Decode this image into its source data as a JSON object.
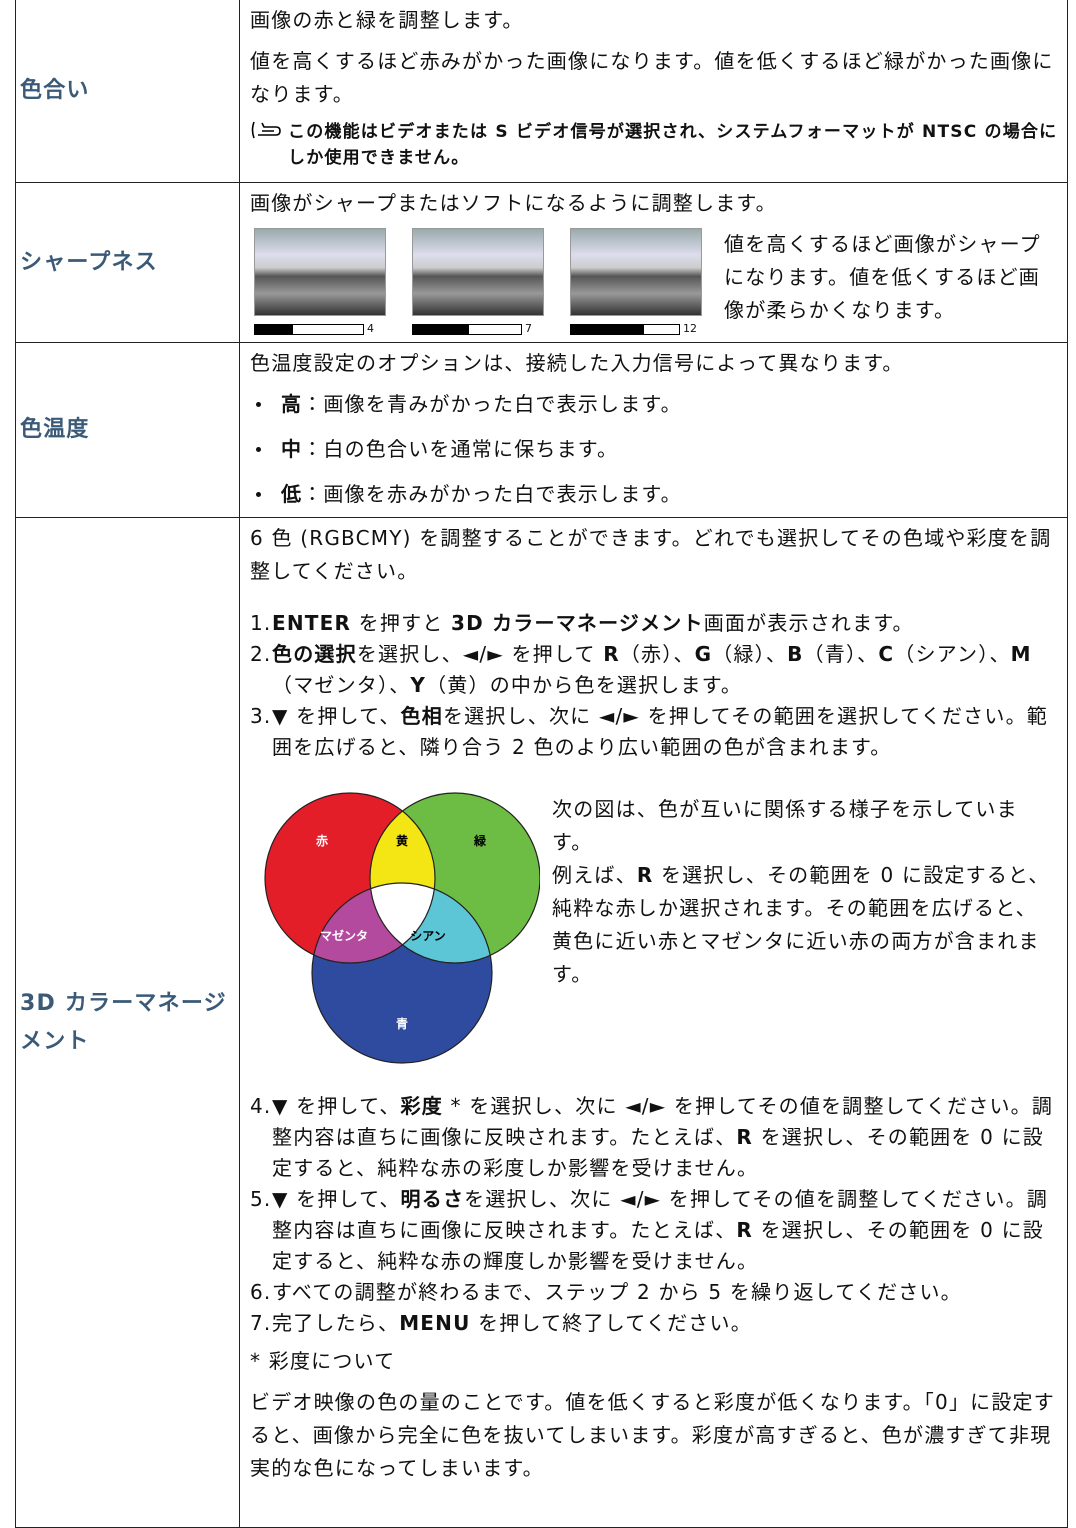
{
  "rows": [
    {
      "label": "色合い",
      "paragraphs": [
        "画像の赤と緑を調整します。",
        "値を高くするほど赤みがかった画像になります。値を低くするほど緑がかった画像になります。"
      ],
      "note": "この機能はビデオまたは S ビデオ信号が選択され、システムフォーマットが NTSC の場合にしか使用できません。"
    },
    {
      "label": "シャープネス",
      "paragraphs": [
        "画像がシャープまたはソフトになるように調整します。"
      ],
      "sliders": [
        "4",
        "7",
        "12"
      ],
      "side_text": "値を高くするほど画像がシャープになります。値を低くするほど画像が柔らかくなります。"
    },
    {
      "label": "色温度",
      "paragraphs": [
        "色温度設定のオプションは、接続した入力信号によって異なります。"
      ],
      "bullets": [
        {
          "term": "高",
          "text": "：画像を青みがかった白で表示します。"
        },
        {
          "term": "中",
          "text": "：白の色合いを通常に保ちます。"
        },
        {
          "term": "低",
          "text": "：画像を赤みがかった白で表示します。"
        }
      ]
    },
    {
      "label": "3D カラーマネージメント",
      "paragraphs": [
        "6 色 (RGBCMY) を調整することができます。どれでも選択してその色域や彩度を調整してください。"
      ],
      "steps_a": [
        {
          "num": "1.",
          "runs": [
            {
              "b": "ENTER"
            },
            {
              "t": " を押すと "
            },
            {
              "b": "3D カラーマネージメント"
            },
            {
              "t": "画面が表示されます。"
            }
          ]
        },
        {
          "num": "2.",
          "runs": [
            {
              "b": "色の選択"
            },
            {
              "t": "を選択し、◄/► を押して "
            },
            {
              "b": "R"
            },
            {
              "t": "（赤）、"
            },
            {
              "b": "G"
            },
            {
              "t": "（緑）、"
            },
            {
              "b": "B"
            },
            {
              "t": "（青）、"
            },
            {
              "b": "C"
            },
            {
              "t": "（シアン）、"
            },
            {
              "b": "M"
            },
            {
              "t": "（マゼンタ）、"
            },
            {
              "b": "Y"
            },
            {
              "t": "（黄）の中から色を選択します。"
            }
          ]
        },
        {
          "num": "3.",
          "runs": [
            {
              "t": "▼ を押して、"
            },
            {
              "b": "色相"
            },
            {
              "t": "を選択し、次に ◄/► を押してその範囲を選択してください。範囲を広げると、隣り合う 2 色のより広い範囲の色が含まれます。"
            }
          ]
        }
      ],
      "diagram": {
        "labels": {
          "red": "赤",
          "yellow": "黄",
          "green": "緑",
          "magenta": "マゼンタ",
          "cyan": "シアン",
          "blue": "青"
        },
        "text1": "次の図は、色が互いに関係する様子を示しています。",
        "text2": [
          {
            "t": "例えば、"
          },
          {
            "b": "R"
          },
          {
            "t": " を選択し、その範囲を 0 に設定すると、純粋な赤しか選択されます。その範囲を広げると、黄色に近い赤とマゼンタに近い赤の両方が含まれます。"
          }
        ]
      },
      "steps_b": [
        {
          "num": "4.",
          "runs": [
            {
              "t": "▼ を押して、"
            },
            {
              "b": "彩度"
            },
            {
              "t": " * を選択し、次に ◄/► を押してその値を調整してください。調整内容は直ちに画像に反映されます。たとえば、"
            },
            {
              "b": "R"
            },
            {
              "t": " を選択し、その範囲を 0 に設定すると、純粋な赤の彩度しか影響を受けません。"
            }
          ]
        },
        {
          "num": "5.",
          "runs": [
            {
              "t": "▼ を押して、"
            },
            {
              "b": "明るさ"
            },
            {
              "t": "を選択し、次に ◄/► を押してその値を調整してください。調整内容は直ちに画像に反映されます。たとえば、"
            },
            {
              "b": "R"
            },
            {
              "t": " を選択し、その範囲を 0 に設定すると、純粋な赤の輝度しか影響を受けません。"
            }
          ]
        },
        {
          "num": "6.",
          "runs": [
            {
              "t": "すべての調整が終わるまで、ステップ 2 から 5 を繰り返してください。"
            }
          ]
        },
        {
          "num": "7.",
          "runs": [
            {
              "t": "完了したら、"
            },
            {
              "b": "MENU"
            },
            {
              "t": " を押して終了してください。"
            }
          ]
        }
      ],
      "footnote_title": "* 彩度について",
      "footnote": "ビデオ映像の色の量のことです。値を低くすると彩度が低くなります。「0」に設定すると、画像から完全に色を抜いてしまいます。彩度が高すぎると、色が濃すぎて非現実的な色になってしまいます。"
    }
  ]
}
